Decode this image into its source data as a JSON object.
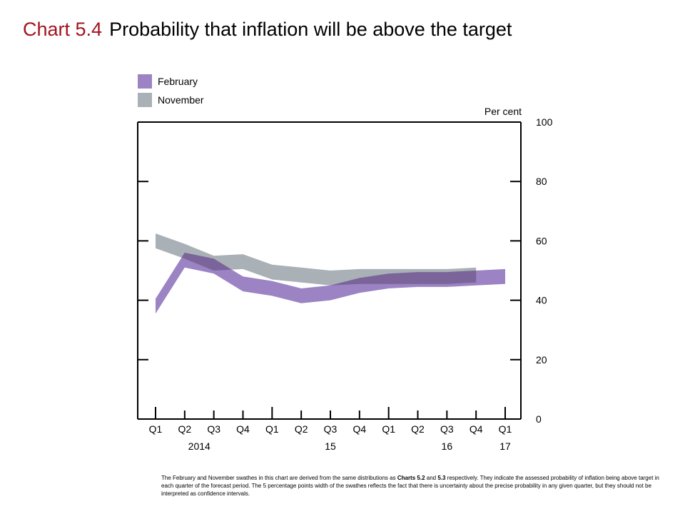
{
  "title": {
    "number": "Chart 5.4",
    "text": "Probability that inflation will be above the target"
  },
  "footnote": {
    "part1": "The February and November swathes in this chart are derived from the same distributions as ",
    "ref1": "Charts 5.2",
    "part2": " and ",
    "ref2": "5.3",
    "part3": " respectively.  They indicate the assessed probability of inflation being above target in each quarter of the forecast period.  The 5 percentage points width of the swathes reflects the fact that there is uncertainty about the precise probability in any given quarter, but they should not be interpreted as confidence intervals."
  },
  "colors": {
    "title_accent": "#a3141e",
    "february": "#9b83c4",
    "november": "#a9b0b6",
    "overlap": "#7b6499"
  },
  "chart_data": {
    "type": "area",
    "ylabel": "Per cent",
    "ylim": [
      0,
      100
    ],
    "yticks": [
      0,
      20,
      40,
      60,
      80,
      100
    ],
    "categories": [
      "Q1",
      "Q2",
      "Q3",
      "Q4",
      "Q1",
      "Q2",
      "Q3",
      "Q4",
      "Q1",
      "Q2",
      "Q3",
      "Q4",
      "Q1"
    ],
    "year_labels": [
      {
        "label": "2014",
        "index": 1.5
      },
      {
        "label": "15",
        "index": 6
      },
      {
        "label": "16",
        "index": 10
      },
      {
        "label": "17",
        "index": 12
      }
    ],
    "year_dividers": [
      0,
      4,
      8,
      12
    ],
    "legend": {
      "position": "top-left"
    },
    "series": [
      {
        "name": "November",
        "color": "#a9b0b6",
        "band_width": 5,
        "lower": [
          57.5,
          54.0,
          50.0,
          50.5,
          47.0,
          46.0,
          45.0,
          45.5,
          45.5,
          45.5,
          45.5,
          46.0
        ],
        "upper": [
          62.5,
          59.0,
          55.0,
          55.5,
          52.0,
          51.0,
          50.0,
          50.5,
          50.5,
          50.5,
          50.5,
          51.0
        ]
      },
      {
        "name": "February",
        "color": "#9b83c4",
        "band_width": 5,
        "lower": [
          35.5,
          51.0,
          49.0,
          43.0,
          41.5,
          39.0,
          40.0,
          42.5,
          44.0,
          44.5,
          44.5,
          45.0,
          45.5
        ],
        "upper": [
          40.5,
          56.0,
          54.0,
          48.0,
          46.5,
          44.0,
          45.0,
          47.5,
          49.0,
          49.5,
          49.5,
          50.0,
          50.5
        ]
      }
    ]
  }
}
